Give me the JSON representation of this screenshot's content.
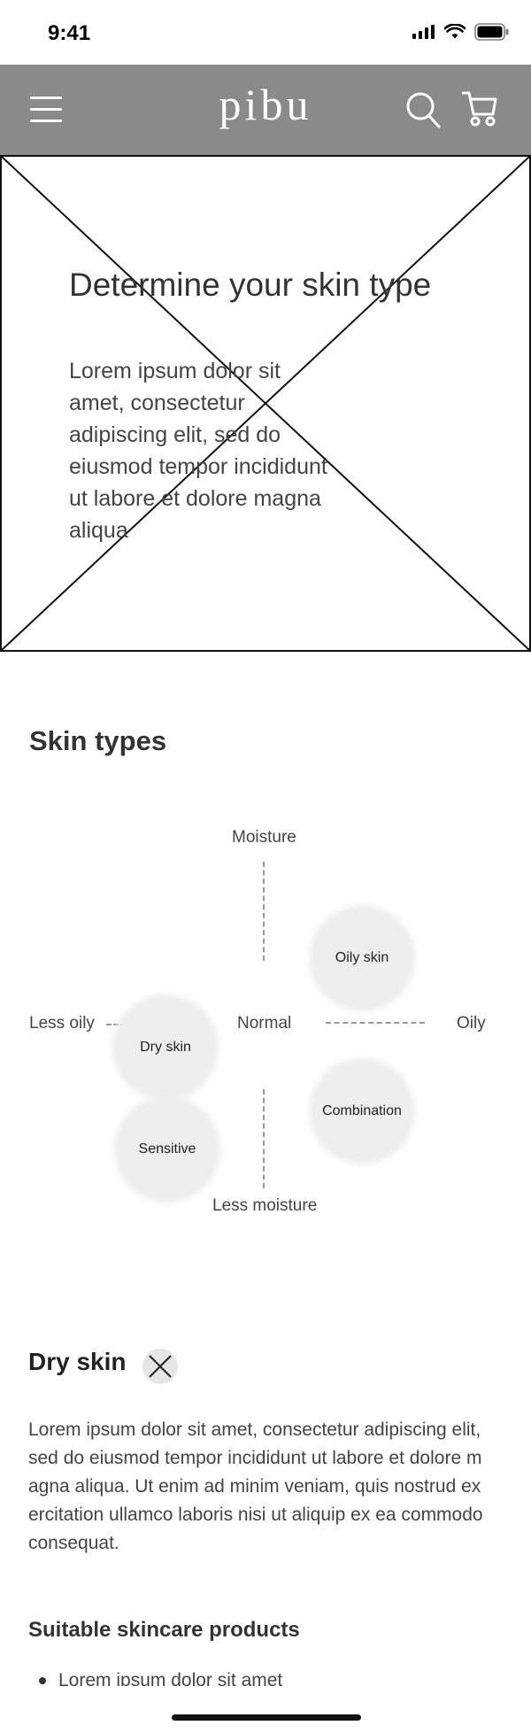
{
  "status_bar": {
    "time": "9:41"
  },
  "header": {
    "logo": "pibu",
    "menu_icon": "hamburger-menu-icon",
    "search_icon": "search-icon",
    "cart_icon": "cart-icon",
    "background_color": "#8a8a8a"
  },
  "hero": {
    "title": "Determine your skin type",
    "text": "Lorem ipsum dolor sit amet, consectetur adipiscing elit, sed do eiusmod tempor incididunt ut labore et dolore magna aliqua"
  },
  "skin_types": {
    "title": "Skin types",
    "axis": {
      "top": "Moisture",
      "bottom": "Less moisture",
      "left": "Less oily",
      "right": "Oily",
      "center": "Normal"
    },
    "bubbles": [
      "Oily skin",
      "Dry skin",
      "Combination",
      "Sensitive"
    ],
    "bubble_color": "#eeeeee"
  },
  "detail": {
    "title": "Dry skin",
    "close_icon": "close-icon",
    "text": "Lorem ipsum dolor sit amet, consectetur adipiscing elit, sed do eiusmod tempor incididunt ut labore et dolore magna aliqua. Ut enim ad minim veniam, quis nostrud exercitation ullamco laboris nisi ut aliquip ex ea commodo consequat.",
    "products_title": "Suitable skincare products",
    "products": [
      "Lorem ipsum dolor sit amet"
    ]
  }
}
